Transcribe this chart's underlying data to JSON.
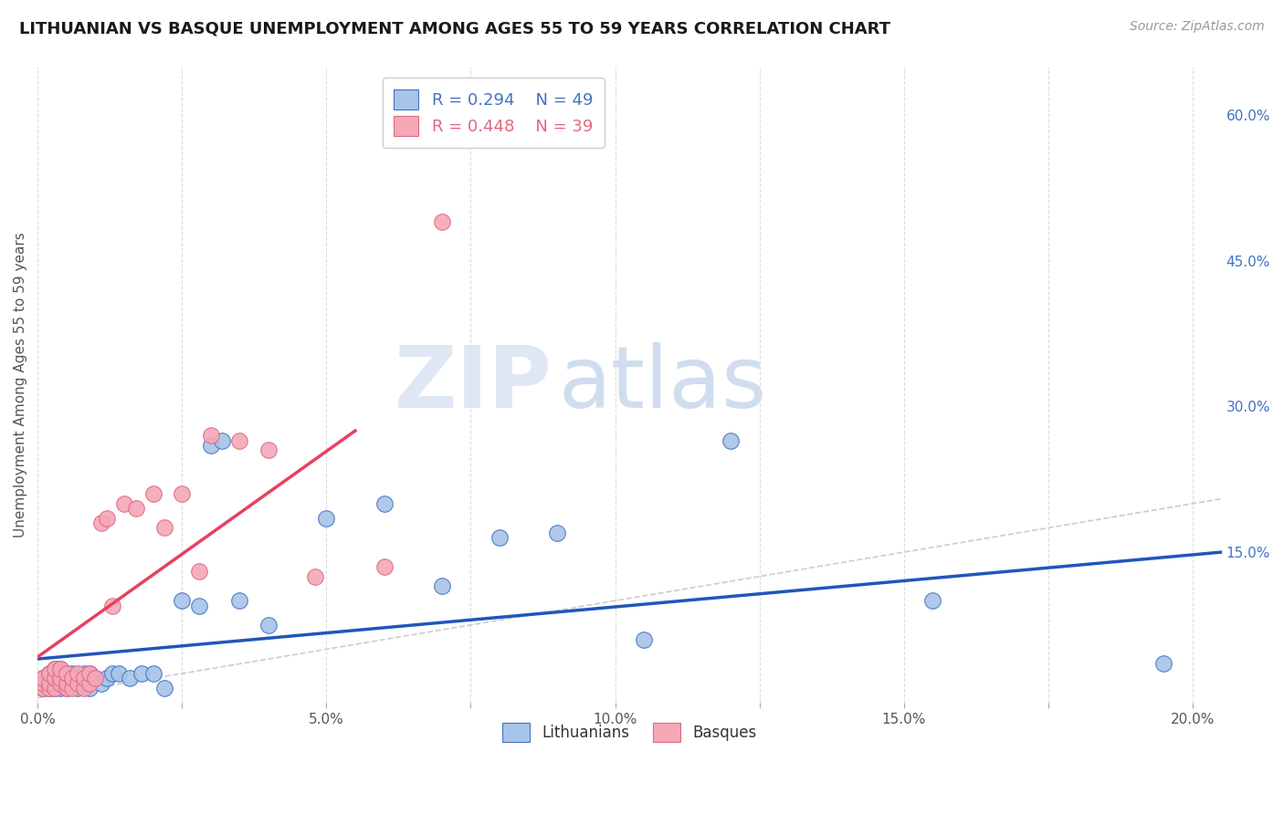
{
  "title": "LITHUANIAN VS BASQUE UNEMPLOYMENT AMONG AGES 55 TO 59 YEARS CORRELATION CHART",
  "source": "Source: ZipAtlas.com",
  "ylabel": "Unemployment Among Ages 55 to 59 years",
  "xlim": [
    0.0,
    0.205
  ],
  "ylim": [
    -0.005,
    0.65
  ],
  "xticks": [
    0.0,
    0.025,
    0.05,
    0.075,
    0.1,
    0.125,
    0.15,
    0.175,
    0.2
  ],
  "xticklabels": [
    "0.0%",
    "",
    "5.0%",
    "",
    "10.0%",
    "",
    "15.0%",
    "",
    "20.0%"
  ],
  "yticks_right": [
    0.0,
    0.15,
    0.3,
    0.45,
    0.6
  ],
  "yticklabels_right": [
    "",
    "15.0%",
    "30.0%",
    "45.0%",
    "60.0%"
  ],
  "legend_r1": "R = 0.294",
  "legend_n1": "N = 49",
  "legend_r2": "R = 0.448",
  "legend_n2": "N = 39",
  "color_blue_fill": "#a8c4e8",
  "color_blue_edge": "#4472c4",
  "color_pink_fill": "#f4a8b8",
  "color_pink_edge": "#e06880",
  "color_trend_blue": "#2255bb",
  "color_trend_pink": "#e84060",
  "color_ref_line": "#cccccc",
  "watermark_zip": "ZIP",
  "watermark_atlas": "atlas",
  "lith_x": [
    0.001,
    0.001,
    0.001,
    0.002,
    0.002,
    0.002,
    0.002,
    0.003,
    0.003,
    0.003,
    0.003,
    0.004,
    0.004,
    0.004,
    0.005,
    0.005,
    0.005,
    0.006,
    0.006,
    0.007,
    0.007,
    0.008,
    0.008,
    0.009,
    0.009,
    0.01,
    0.011,
    0.012,
    0.013,
    0.014,
    0.016,
    0.018,
    0.02,
    0.022,
    0.025,
    0.028,
    0.03,
    0.032,
    0.035,
    0.04,
    0.05,
    0.06,
    0.07,
    0.08,
    0.09,
    0.105,
    0.12,
    0.155,
    0.195
  ],
  "lith_y": [
    0.01,
    0.015,
    0.02,
    0.01,
    0.015,
    0.02,
    0.025,
    0.01,
    0.015,
    0.025,
    0.03,
    0.01,
    0.02,
    0.03,
    0.01,
    0.02,
    0.025,
    0.015,
    0.025,
    0.01,
    0.02,
    0.015,
    0.025,
    0.01,
    0.025,
    0.02,
    0.015,
    0.02,
    0.025,
    0.025,
    0.02,
    0.025,
    0.025,
    0.01,
    0.1,
    0.095,
    0.26,
    0.265,
    0.1,
    0.075,
    0.185,
    0.2,
    0.115,
    0.165,
    0.17,
    0.06,
    0.265,
    0.1,
    0.035
  ],
  "basq_x": [
    0.001,
    0.001,
    0.001,
    0.002,
    0.002,
    0.002,
    0.003,
    0.003,
    0.003,
    0.004,
    0.004,
    0.004,
    0.005,
    0.005,
    0.005,
    0.006,
    0.006,
    0.007,
    0.007,
    0.008,
    0.008,
    0.009,
    0.009,
    0.01,
    0.011,
    0.012,
    0.013,
    0.015,
    0.017,
    0.02,
    0.022,
    0.025,
    0.028,
    0.03,
    0.035,
    0.04,
    0.048,
    0.06,
    0.07
  ],
  "basq_y": [
    0.01,
    0.015,
    0.02,
    0.01,
    0.015,
    0.025,
    0.01,
    0.02,
    0.03,
    0.015,
    0.02,
    0.03,
    0.01,
    0.015,
    0.025,
    0.01,
    0.02,
    0.015,
    0.025,
    0.01,
    0.02,
    0.015,
    0.025,
    0.02,
    0.18,
    0.185,
    0.095,
    0.2,
    0.195,
    0.21,
    0.175,
    0.21,
    0.13,
    0.27,
    0.265,
    0.255,
    0.125,
    0.135,
    0.49
  ],
  "lith_trend_x0": 0.0,
  "lith_trend_x1": 0.205,
  "lith_trend_y0": 0.04,
  "lith_trend_y1": 0.15,
  "basq_trend_x0": 0.0,
  "basq_trend_x1": 0.055,
  "basq_trend_y0": 0.042,
  "basq_trend_y1": 0.275
}
